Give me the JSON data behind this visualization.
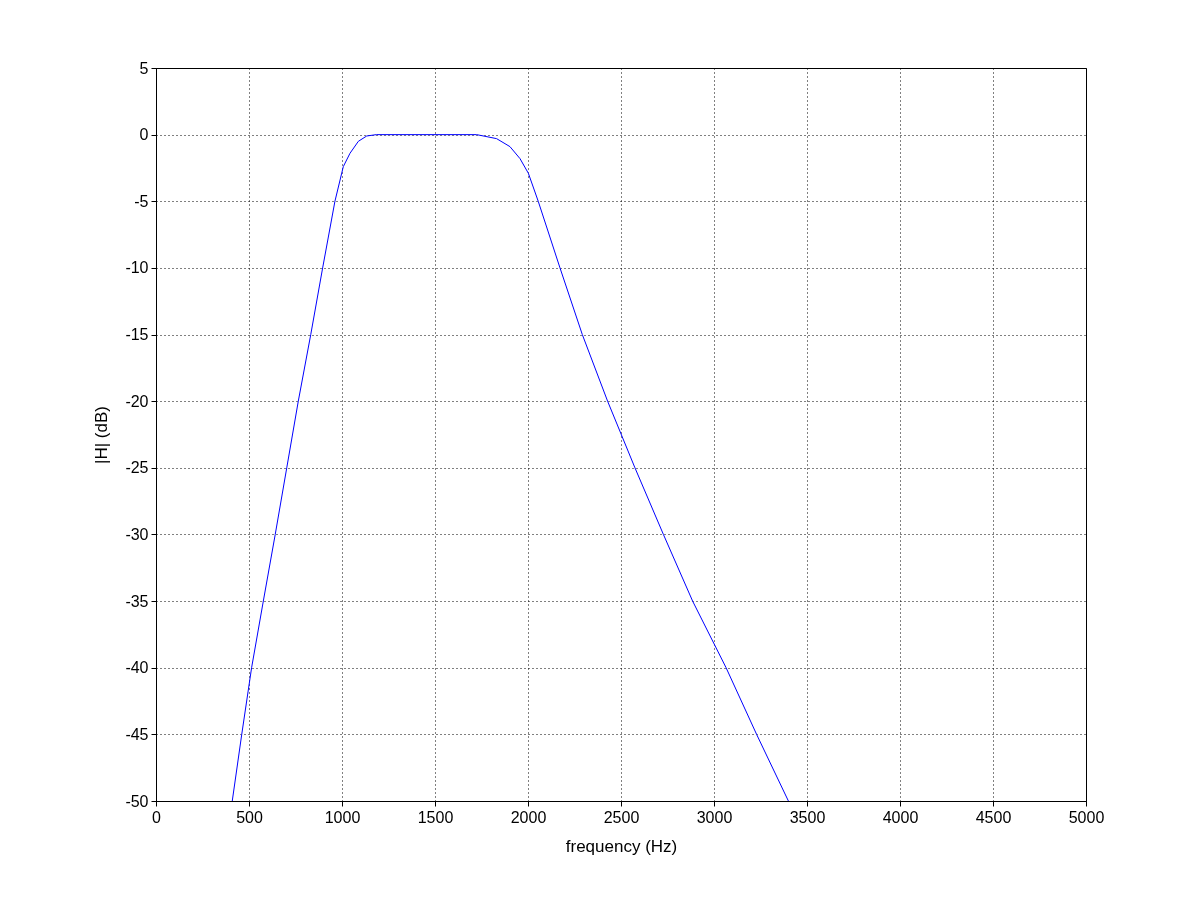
{
  "chart_data": {
    "type": "line",
    "xlabel": "frequency (Hz)",
    "ylabel": "|H| (dB)",
    "x": [
      410,
      461,
      514,
      577,
      641,
      703,
      765,
      832,
      896,
      962,
      1007,
      1043,
      1088,
      1133,
      1185,
      1500,
      1724,
      1831,
      1903,
      1957,
      2002,
      2055,
      2172,
      2292,
      2428,
      2575,
      2728,
      2885,
      3065,
      3229,
      3400
    ],
    "series": [
      {
        "color": "#0000ff",
        "values": [
          -50,
          -45,
          -40,
          -35,
          -30,
          -25,
          -20,
          -15,
          -10,
          -5,
          -2.4,
          -1.4,
          -0.5,
          -0.1,
          0,
          0,
          0,
          -0.3,
          -0.9,
          -1.8,
          -2.9,
          -5,
          -10,
          -15,
          -20,
          -25,
          -30,
          -35,
          -40,
          -45,
          -50
        ]
      }
    ],
    "xlim": [
      0,
      5000
    ],
    "ylim": [
      -50,
      5
    ],
    "xticks": [
      0,
      500,
      1000,
      1500,
      2000,
      2500,
      3000,
      3500,
      4000,
      4500,
      5000
    ],
    "yticks": [
      -50,
      -45,
      -40,
      -35,
      -30,
      -25,
      -20,
      -15,
      -10,
      -5,
      0,
      5
    ],
    "grid": true,
    "line_style": "solid"
  }
}
